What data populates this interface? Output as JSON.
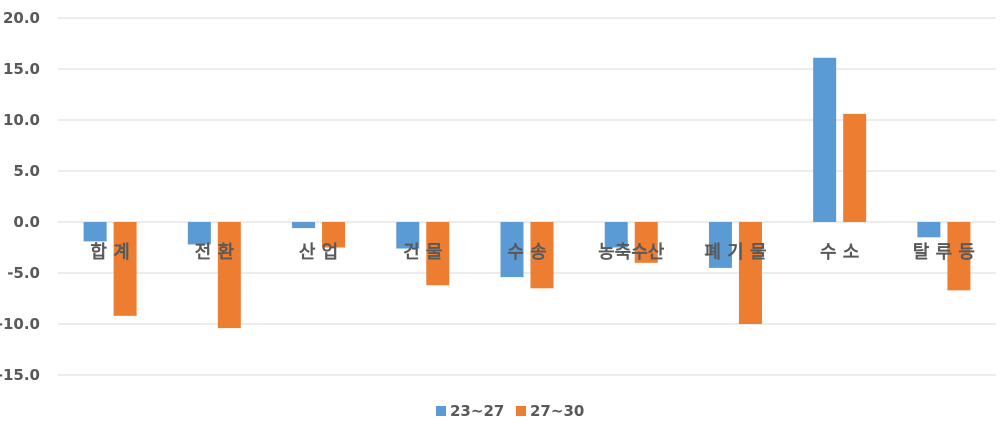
{
  "chart_data": {
    "type": "bar",
    "title": "",
    "xlabel": "",
    "ylabel": "",
    "categories": [
      "합 계",
      "전 환",
      "산 업",
      "건 물",
      "수 송",
      "농축수산",
      "폐 기 물",
      "수 소",
      "탈 루 등"
    ],
    "series": [
      {
        "name": "23~27",
        "color": "#5B9BD5",
        "values": [
          -1.9,
          -2.2,
          -0.6,
          -2.6,
          -5.4,
          -2.5,
          -4.5,
          16.1,
          -1.5
        ]
      },
      {
        "name": "27~30",
        "color": "#ED7D31",
        "values": [
          -9.2,
          -10.4,
          -2.5,
          -6.2,
          -6.5,
          -4.0,
          -10.0,
          10.6,
          -6.7
        ]
      }
    ],
    "ylim": [
      -15.0,
      20.0
    ],
    "yticks": [
      "20.0",
      "15.0",
      "10.0",
      "5.0",
      "0.0",
      "-5.0",
      "-10.0",
      "-15.0"
    ],
    "grid": true,
    "legend_position": "bottom"
  }
}
